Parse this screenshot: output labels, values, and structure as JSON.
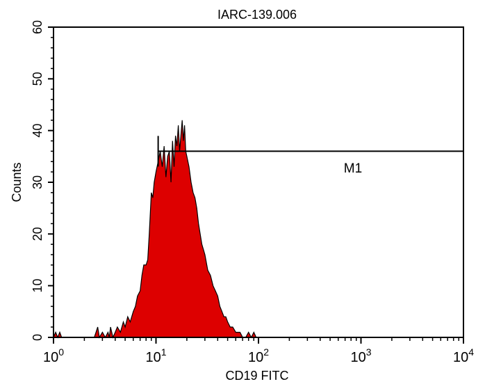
{
  "chart_data": {
    "type": "area",
    "title": "IARC-139.006",
    "xlabel": "CD19 FITC",
    "ylabel": "Counts",
    "x_scale": "log",
    "xlim": [
      1,
      10000
    ],
    "ylim": [
      0,
      60
    ],
    "x_ticks": [
      {
        "base": "10",
        "exp": "0",
        "value": 1
      },
      {
        "base": "10",
        "exp": "1",
        "value": 10
      },
      {
        "base": "10",
        "exp": "2",
        "value": 100
      },
      {
        "base": "10",
        "exp": "3",
        "value": 1000
      },
      {
        "base": "10",
        "exp": "4",
        "value": 10000
      }
    ],
    "y_ticks": [
      "0",
      "10",
      "20",
      "30",
      "40",
      "50",
      "60"
    ],
    "fill_color": "#dd0000",
    "series": [
      {
        "x": [
          1,
          1.05,
          1.1,
          1.15,
          1.2,
          1.3,
          2.5,
          2.6,
          2.7,
          2.8,
          3.0,
          3.2,
          3.4,
          3.5,
          3.6,
          3.8,
          4.0,
          4.2,
          4.5,
          4.8,
          5.0,
          5.3,
          5.6,
          6.0,
          6.3,
          6.6,
          7.0,
          7.3,
          7.6,
          8.0,
          8.3,
          8.6,
          9.0,
          9.3,
          9.6,
          10.0,
          10.5,
          11.0,
          11.5,
          12.0,
          12.5,
          13.0,
          13.5,
          14.0,
          14.5,
          15.0,
          15.5,
          16.0,
          16.5,
          17.0,
          17.5,
          18.0,
          18.5,
          19.0,
          19.5,
          20.0,
          21.0,
          22.0,
          23.0,
          24.0,
          25.0,
          26.0,
          27.0,
          28.0,
          29.0,
          30.0,
          32.0,
          34.0,
          36.0,
          38.0,
          40.0,
          42.0,
          44.0,
          46.0,
          48.0,
          50.0,
          53.0,
          56.0,
          60.0,
          63.0,
          66.0,
          70.0,
          75.0,
          80.0,
          85.0,
          90.0,
          95.0,
          100.0,
          110.0
        ],
        "values": [
          0,
          1,
          0,
          1,
          0,
          0,
          0,
          1,
          2,
          0,
          1,
          0,
          1,
          0,
          2,
          0,
          1,
          2,
          1,
          3,
          2,
          4,
          3,
          5,
          6,
          8,
          9,
          12,
          14,
          14,
          15,
          20,
          28,
          27,
          30,
          32,
          34,
          36,
          33,
          37,
          31,
          35,
          36,
          30,
          38,
          33,
          39,
          37,
          41,
          36,
          39,
          42,
          38,
          41,
          36,
          35,
          33,
          30,
          28,
          27,
          25,
          22,
          20,
          18,
          17,
          16,
          13,
          12,
          10,
          9,
          8,
          6,
          5,
          4,
          4,
          3,
          2,
          2,
          1,
          1,
          1,
          0,
          0,
          1,
          0,
          1,
          0,
          0,
          0
        ]
      }
    ],
    "marker": {
      "label": "M1",
      "x_start": 10.5,
      "x_end": 10000,
      "y": 36
    }
  }
}
